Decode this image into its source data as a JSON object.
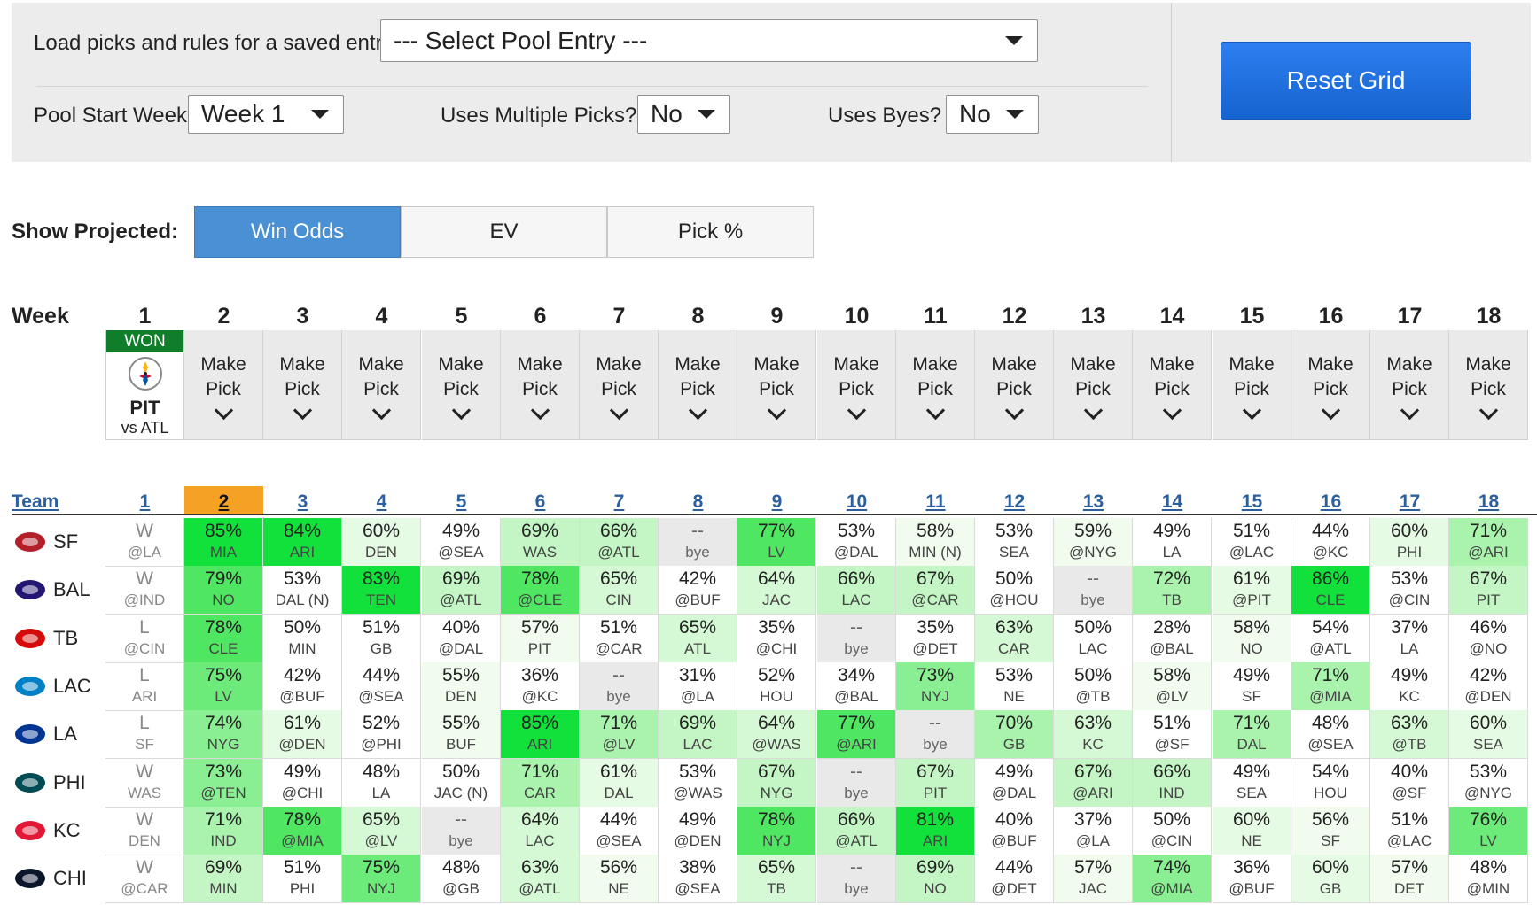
{
  "controls": {
    "load_label": "Load picks and rules for a saved entry:",
    "pool_entry_value": "--- Select Pool Entry ---",
    "start_week_label": "Pool Start Week",
    "start_week_value": "Week 1",
    "multi_label": "Uses Multiple Picks?",
    "multi_value": "No",
    "byes_label": "Uses Byes?",
    "byes_value": "No",
    "reset_label": "Reset Grid"
  },
  "projected": {
    "label": "Show Projected:",
    "options": [
      "Win Odds",
      "EV",
      "Pick %"
    ],
    "active": "Win Odds"
  },
  "week_header": {
    "title": "Week",
    "weeks": [
      "1",
      "2",
      "3",
      "4",
      "5",
      "6",
      "7",
      "8",
      "9",
      "10",
      "11",
      "12",
      "13",
      "14",
      "15",
      "16",
      "17",
      "18"
    ],
    "won_badge": "WON",
    "won_team": "PIT",
    "won_opp": "vs ATL",
    "make_pick_line1": "Make",
    "make_pick_line2": "Pick"
  },
  "grid": {
    "team_header": "Team",
    "current_week": "2",
    "rows": [
      {
        "team": "SF",
        "logo_color": "#b3202a",
        "cells": [
          [
            "W",
            "@LA"
          ],
          [
            "85%",
            "MIA"
          ],
          [
            "84%",
            "ARI"
          ],
          [
            "60%",
            "DEN"
          ],
          [
            "49%",
            "@SEA"
          ],
          [
            "69%",
            "WAS"
          ],
          [
            "66%",
            "@ATL"
          ],
          [
            "--",
            "bye"
          ],
          [
            "77%",
            "LV"
          ],
          [
            "53%",
            "@DAL"
          ],
          [
            "58%",
            "MIN (N)"
          ],
          [
            "53%",
            "SEA"
          ],
          [
            "59%",
            "@NYG"
          ],
          [
            "49%",
            "LA"
          ],
          [
            "51%",
            "@LAC"
          ],
          [
            "44%",
            "@KC"
          ],
          [
            "60%",
            "PHI"
          ],
          [
            "71%",
            "@ARI"
          ]
        ]
      },
      {
        "team": "BAL",
        "logo_color": "#241773",
        "cells": [
          [
            "W",
            "@IND"
          ],
          [
            "79%",
            "NO"
          ],
          [
            "53%",
            "DAL (N)"
          ],
          [
            "83%",
            "TEN"
          ],
          [
            "69%",
            "@ATL"
          ],
          [
            "78%",
            "@CLE"
          ],
          [
            "65%",
            "CIN"
          ],
          [
            "42%",
            "@BUF"
          ],
          [
            "64%",
            "JAC"
          ],
          [
            "66%",
            "LAC"
          ],
          [
            "67%",
            "@CAR"
          ],
          [
            "50%",
            "@HOU"
          ],
          [
            "--",
            "bye"
          ],
          [
            "72%",
            "TB"
          ],
          [
            "61%",
            "@PIT"
          ],
          [
            "86%",
            "CLE"
          ],
          [
            "53%",
            "@CIN"
          ],
          [
            "67%",
            "PIT"
          ]
        ]
      },
      {
        "team": "TB",
        "logo_color": "#d50a0a",
        "cells": [
          [
            "L",
            "@CIN"
          ],
          [
            "78%",
            "CLE"
          ],
          [
            "50%",
            "MIN"
          ],
          [
            "51%",
            "GB"
          ],
          [
            "40%",
            "@DAL"
          ],
          [
            "57%",
            "PIT"
          ],
          [
            "51%",
            "@CAR"
          ],
          [
            "65%",
            "ATL"
          ],
          [
            "35%",
            "@CHI"
          ],
          [
            "--",
            "bye"
          ],
          [
            "35%",
            "@DET"
          ],
          [
            "63%",
            "CAR"
          ],
          [
            "50%",
            "LAC"
          ],
          [
            "28%",
            "@BAL"
          ],
          [
            "58%",
            "NO"
          ],
          [
            "54%",
            "@ATL"
          ],
          [
            "37%",
            "LA"
          ],
          [
            "46%",
            "@NO"
          ]
        ]
      },
      {
        "team": "LAC",
        "logo_color": "#0080c6",
        "cells": [
          [
            "L",
            "ARI"
          ],
          [
            "75%",
            "LV"
          ],
          [
            "42%",
            "@BUF"
          ],
          [
            "44%",
            "@SEA"
          ],
          [
            "55%",
            "DEN"
          ],
          [
            "36%",
            "@KC"
          ],
          [
            "--",
            "bye"
          ],
          [
            "31%",
            "@LA"
          ],
          [
            "52%",
            "HOU"
          ],
          [
            "34%",
            "@BAL"
          ],
          [
            "73%",
            "NYJ"
          ],
          [
            "53%",
            "NE"
          ],
          [
            "50%",
            "@TB"
          ],
          [
            "58%",
            "@LV"
          ],
          [
            "49%",
            "SF"
          ],
          [
            "71%",
            "@MIA"
          ],
          [
            "49%",
            "KC"
          ],
          [
            "42%",
            "@DEN"
          ]
        ]
      },
      {
        "team": "LA",
        "logo_color": "#003594",
        "cells": [
          [
            "L",
            "SF"
          ],
          [
            "74%",
            "NYG"
          ],
          [
            "61%",
            "@DEN"
          ],
          [
            "52%",
            "@PHI"
          ],
          [
            "55%",
            "BUF"
          ],
          [
            "85%",
            "ARI"
          ],
          [
            "71%",
            "@LV"
          ],
          [
            "69%",
            "LAC"
          ],
          [
            "64%",
            "@WAS"
          ],
          [
            "77%",
            "@ARI"
          ],
          [
            "--",
            "bye"
          ],
          [
            "70%",
            "GB"
          ],
          [
            "63%",
            "KC"
          ],
          [
            "51%",
            "@SF"
          ],
          [
            "71%",
            "DAL"
          ],
          [
            "48%",
            "@SEA"
          ],
          [
            "63%",
            "@TB"
          ],
          [
            "60%",
            "SEA"
          ]
        ]
      },
      {
        "team": "PHI",
        "logo_color": "#004c54",
        "cells": [
          [
            "W",
            "WAS"
          ],
          [
            "73%",
            "@TEN"
          ],
          [
            "49%",
            "@CHI"
          ],
          [
            "48%",
            "LA"
          ],
          [
            "50%",
            "JAC (N)"
          ],
          [
            "71%",
            "CAR"
          ],
          [
            "61%",
            "DAL"
          ],
          [
            "53%",
            "@WAS"
          ],
          [
            "67%",
            "NYG"
          ],
          [
            "--",
            "bye"
          ],
          [
            "67%",
            "PIT"
          ],
          [
            "49%",
            "@DAL"
          ],
          [
            "67%",
            "@ARI"
          ],
          [
            "66%",
            "IND"
          ],
          [
            "49%",
            "SEA"
          ],
          [
            "54%",
            "HOU"
          ],
          [
            "40%",
            "@SF"
          ],
          [
            "53%",
            "@NYG"
          ]
        ]
      },
      {
        "team": "KC",
        "logo_color": "#e31837",
        "cells": [
          [
            "W",
            "DEN"
          ],
          [
            "71%",
            "IND"
          ],
          [
            "78%",
            "@MIA"
          ],
          [
            "65%",
            "@LV"
          ],
          [
            "--",
            "bye"
          ],
          [
            "64%",
            "LAC"
          ],
          [
            "44%",
            "@SEA"
          ],
          [
            "49%",
            "@DEN"
          ],
          [
            "78%",
            "NYJ"
          ],
          [
            "66%",
            "@ATL"
          ],
          [
            "81%",
            "ARI"
          ],
          [
            "40%",
            "@BUF"
          ],
          [
            "37%",
            "@LA"
          ],
          [
            "50%",
            "@CIN"
          ],
          [
            "60%",
            "NE"
          ],
          [
            "56%",
            "SF"
          ],
          [
            "51%",
            "@LAC"
          ],
          [
            "76%",
            "LV"
          ]
        ]
      },
      {
        "team": "CHI",
        "logo_color": "#0b162a",
        "cells": [
          [
            "W",
            "@CAR"
          ],
          [
            "69%",
            "MIN"
          ],
          [
            "51%",
            "PHI"
          ],
          [
            "75%",
            "NYJ"
          ],
          [
            "48%",
            "@GB"
          ],
          [
            "63%",
            "@ATL"
          ],
          [
            "56%",
            "NE"
          ],
          [
            "38%",
            "@SEA"
          ],
          [
            "65%",
            "TB"
          ],
          [
            "--",
            "bye"
          ],
          [
            "69%",
            "NO"
          ],
          [
            "44%",
            "@DET"
          ],
          [
            "57%",
            "JAC"
          ],
          [
            "74%",
            "@MIA"
          ],
          [
            "36%",
            "@BUF"
          ],
          [
            "60%",
            "GB"
          ],
          [
            "57%",
            "DET"
          ],
          [
            "48%",
            "@MIN"
          ]
        ]
      }
    ]
  }
}
